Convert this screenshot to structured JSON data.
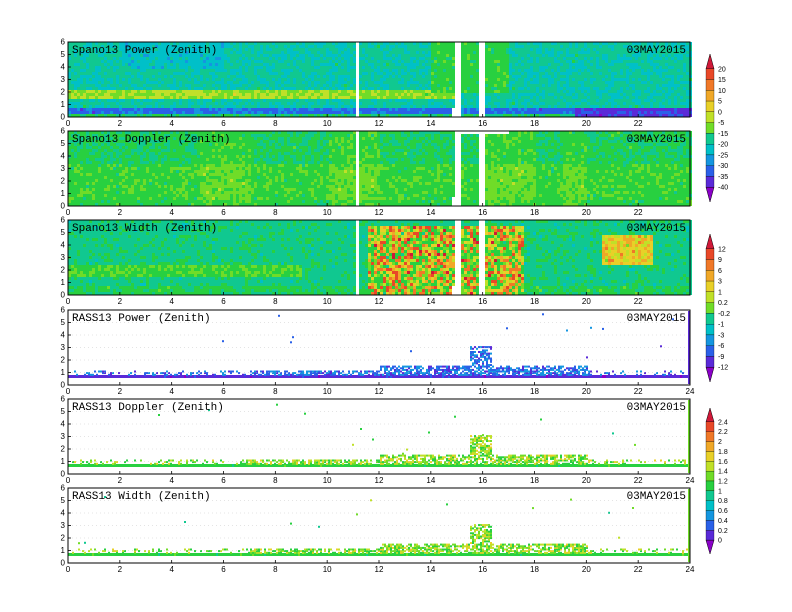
{
  "colors": {
    "sequential": [
      "#8a00c8",
      "#5a2ad8",
      "#2a60e8",
      "#1496e0",
      "#00c0c8",
      "#10c890",
      "#28d040",
      "#70dc28",
      "#c0e028",
      "#e8d028",
      "#f0a828",
      "#f07828",
      "#e84828",
      "#d01838"
    ],
    "background": "#ffffff",
    "frame": "#000000"
  },
  "colorbars": [
    {
      "id": "cb-spano-power",
      "ticks": [
        "20",
        "15",
        "10",
        "5",
        "0",
        "-5",
        "-15",
        "-20",
        "-25",
        "-30",
        "-35",
        "-40"
      ]
    },
    {
      "id": "cb-spano-width",
      "ticks": [
        "12",
        "9",
        "6",
        "3",
        "1",
        "0.2",
        "-0.2",
        "-1",
        "-3",
        "-6",
        "-9",
        "-12"
      ]
    },
    {
      "id": "cb-rass",
      "ticks": [
        "2.4",
        "2.2",
        "2",
        "1.8",
        "1.6",
        "1.4",
        "1.2",
        "1",
        "0.8",
        "0.6",
        "0.4",
        "0.2",
        "0"
      ]
    }
  ],
  "chart_data": [
    {
      "type": "heatmap",
      "title": "Spano13 Power (Zenith)",
      "date": "03MAY2015",
      "xlim": [
        0,
        24
      ],
      "ylim": [
        0,
        6
      ],
      "xticks": [
        "0",
        "2",
        "4",
        "6",
        "8",
        "10",
        "12",
        "14",
        "16",
        "18",
        "20",
        "22"
      ],
      "yticks": [
        "0",
        "1",
        "2",
        "3",
        "4",
        "5",
        "6"
      ],
      "colorbar": "cb-spano-power"
    },
    {
      "type": "heatmap",
      "title": "Spano13 Doppler (Zenith)",
      "date": "03MAY2015",
      "xlim": [
        0,
        24
      ],
      "ylim": [
        0,
        6
      ],
      "xticks": [
        "0",
        "2",
        "4",
        "6",
        "8",
        "10",
        "12",
        "14",
        "16",
        "18",
        "20",
        "22"
      ],
      "yticks": [
        "0",
        "1",
        "2",
        "3",
        "4",
        "5",
        "6"
      ],
      "colorbar": "cb-spano-power"
    },
    {
      "type": "heatmap",
      "title": "Spano13 Width (Zenith)",
      "date": "03MAY2015",
      "xlim": [
        0,
        24
      ],
      "ylim": [
        0,
        6
      ],
      "xticks": [
        "0",
        "2",
        "4",
        "6",
        "8",
        "10",
        "12",
        "14",
        "16",
        "18",
        "20",
        "22"
      ],
      "yticks": [
        "0",
        "1",
        "2",
        "3",
        "4",
        "5",
        "6"
      ],
      "colorbar": "cb-spano-width"
    },
    {
      "type": "heatmap",
      "title": "RASS13 Power (Zenith)",
      "date": "03MAY2015",
      "xlim": [
        0,
        24
      ],
      "ylim": [
        0,
        6
      ],
      "xticks": [
        "0",
        "2",
        "4",
        "6",
        "8",
        "10",
        "12",
        "14",
        "16",
        "18",
        "20",
        "22",
        "24"
      ],
      "yticks": [
        "0",
        "1",
        "2",
        "3",
        "4",
        "5",
        "6"
      ],
      "colorbar": "cb-spano-width"
    },
    {
      "type": "heatmap",
      "title": "RASS13 Doppler (Zenith)",
      "date": "03MAY2015",
      "xlim": [
        0,
        24
      ],
      "ylim": [
        0,
        6
      ],
      "xticks": [
        "0",
        "2",
        "4",
        "6",
        "8",
        "10",
        "12",
        "14",
        "16",
        "18",
        "20",
        "22",
        "24"
      ],
      "yticks": [
        "0",
        "1",
        "2",
        "3",
        "4",
        "5",
        "6"
      ],
      "colorbar": "cb-rass"
    },
    {
      "type": "heatmap",
      "title": "RASS13 Width (Zenith)",
      "date": "03MAY2015",
      "xlim": [
        0,
        24
      ],
      "ylim": [
        0,
        6
      ],
      "xticks": [
        "0",
        "2",
        "4",
        "6",
        "8",
        "10",
        "12",
        "14",
        "16",
        "18",
        "20",
        "22",
        "24"
      ],
      "yticks": [
        "0",
        "1",
        "2",
        "3",
        "4",
        "5",
        "6"
      ],
      "colorbar": "cb-rass"
    }
  ]
}
